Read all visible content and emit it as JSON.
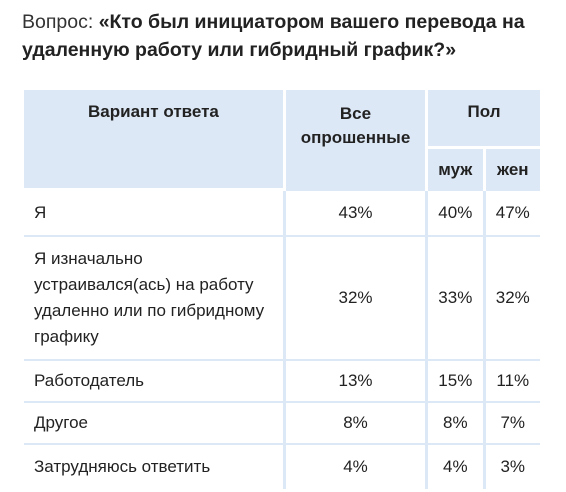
{
  "question": {
    "prefix": "Вопрос: ",
    "text": "«Кто был инициатором вашего перевода на удаленную работу или гибридный график?»"
  },
  "table": {
    "headers": {
      "variant": "Вариант ответа",
      "all": "Все опрошенные",
      "gender": "Пол",
      "men": "муж",
      "women": "жен"
    },
    "rows": [
      {
        "label": "Я",
        "all": "43%",
        "men": "40%",
        "women": "47%"
      },
      {
        "label": "Я изначально устраивался(ась) на работу удаленно или по гибридному графику",
        "all": "32%",
        "men": "33%",
        "women": "32%"
      },
      {
        "label": "Работодатель",
        "all": "13%",
        "men": "15%",
        "women": "11%"
      },
      {
        "label": "Другое",
        "all": "8%",
        "men": "8%",
        "women": "7%"
      },
      {
        "label": "Затрудняюсь ответить",
        "all": "4%",
        "men": "4%",
        "women": "3%"
      }
    ]
  },
  "colors": {
    "header_bg": "#dde8f6",
    "text": "#222222"
  }
}
